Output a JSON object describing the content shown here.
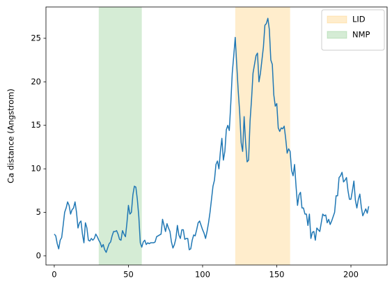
{
  "chart_data": {
    "type": "line",
    "ylabel": "Ca distance (Angstrom)",
    "color": "#1f77b4",
    "x": [
      0,
      1,
      2,
      3,
      4,
      5,
      6,
      7,
      8,
      9,
      10,
      11,
      12,
      13,
      14,
      15,
      16,
      17,
      18,
      19,
      20,
      21,
      22,
      23,
      24,
      25,
      26,
      27,
      28,
      29,
      30,
      31,
      32,
      33,
      34,
      35,
      36,
      37,
      38,
      39,
      40,
      41,
      42,
      43,
      44,
      45,
      46,
      47,
      48,
      49,
      50,
      51,
      52,
      53,
      54,
      55,
      56,
      57,
      58,
      59,
      60,
      61,
      62,
      63,
      64,
      65,
      66,
      67,
      68,
      69,
      70,
      71,
      72,
      73,
      74,
      75,
      76,
      77,
      78,
      79,
      80,
      81,
      82,
      83,
      84,
      85,
      86,
      87,
      88,
      89,
      90,
      91,
      92,
      93,
      94,
      95,
      96,
      97,
      98,
      99,
      100,
      101,
      102,
      103,
      104,
      105,
      106,
      107,
      108,
      109,
      110,
      111,
      112,
      113,
      114,
      115,
      116,
      117,
      118,
      119,
      120,
      121,
      122,
      123,
      124,
      125,
      126,
      127,
      128,
      129,
      130,
      131,
      132,
      133,
      134,
      135,
      136,
      137,
      138,
      139,
      140,
      141,
      142,
      143,
      144,
      145,
      146,
      147,
      148,
      149,
      150,
      151,
      152,
      153,
      154,
      155,
      156,
      157,
      158,
      159,
      160,
      161,
      162,
      163,
      164,
      165,
      166,
      167,
      168,
      169,
      170,
      171,
      172,
      173,
      174,
      175,
      176,
      177,
      178,
      179,
      180,
      181,
      182,
      183,
      184,
      185,
      186,
      187,
      188,
      189,
      190,
      191,
      192,
      193,
      194,
      195,
      196,
      197,
      198,
      199,
      200,
      201,
      202,
      203,
      204,
      205,
      206,
      207,
      208,
      209,
      210,
      211,
      212
    ],
    "values": [
      2.5,
      2.3,
      1.4,
      0.8,
      1.8,
      2.1,
      3.5,
      5.0,
      5.5,
      6.2,
      5.8,
      4.8,
      5.3,
      5.5,
      6.2,
      5.0,
      3.2,
      3.8,
      4.0,
      2.5,
      1.5,
      3.8,
      3.2,
      1.8,
      1.7,
      2.0,
      1.8,
      2.0,
      2.5,
      2.2,
      1.8,
      1.5,
      1.0,
      1.3,
      0.7,
      0.4,
      0.9,
      1.4,
      1.6,
      2.3,
      2.8,
      2.8,
      2.9,
      2.5,
      1.9,
      1.8,
      2.9,
      2.5,
      2.2,
      3.8,
      5.8,
      4.8,
      5.0,
      7.0,
      8.0,
      7.9,
      6.5,
      4.5,
      1.5,
      1.0,
      1.6,
      1.8,
      1.3,
      1.5,
      1.4,
      1.5,
      1.5,
      1.5,
      1.6,
      2.2,
      2.3,
      2.4,
      2.5,
      4.2,
      3.5,
      2.8,
      3.7,
      3.2,
      2.8,
      1.6,
      0.9,
      1.3,
      2.0,
      3.5,
      2.4,
      2.0,
      3.0,
      3.0,
      1.9,
      2.0,
      2.0,
      0.7,
      0.8,
      1.8,
      2.4,
      2.3,
      3.0,
      3.8,
      4.0,
      3.5,
      3.0,
      2.6,
      2.0,
      2.8,
      3.8,
      5.0,
      6.5,
      8.0,
      8.7,
      10.5,
      10.9,
      10.0,
      12.0,
      13.5,
      11.0,
      12.0,
      14.5,
      15.0,
      14.4,
      17.5,
      21.0,
      23.0,
      25.1,
      22.0,
      19.0,
      16.5,
      13.0,
      12.0,
      16.0,
      13.0,
      10.8,
      11.0,
      15.5,
      18.0,
      21.0,
      22.0,
      23.0,
      23.3,
      20.0,
      21.0,
      22.5,
      24.0,
      26.5,
      26.7,
      27.3,
      26.0,
      22.5,
      22.0,
      18.5,
      17.2,
      17.5,
      14.7,
      14.3,
      14.7,
      14.6,
      14.9,
      13.5,
      11.8,
      12.3,
      12.0,
      9.8,
      9.2,
      10.5,
      8.0,
      5.8,
      7.0,
      7.3,
      5.5,
      5.5,
      4.8,
      4.8,
      3.5,
      4.8,
      2.0,
      2.7,
      2.8,
      1.8,
      3.2,
      3.0,
      2.8,
      3.8,
      4.8,
      4.6,
      4.7,
      3.8,
      4.2,
      3.6,
      4.0,
      4.5,
      5.0,
      6.9,
      6.9,
      9.0,
      9.2,
      9.6,
      8.5,
      8.7,
      9.0,
      7.5,
      6.5,
      6.5,
      7.5,
      8.6,
      6.4,
      5.5,
      6.5,
      7.1,
      5.6,
      4.6,
      5.0,
      5.4,
      4.9,
      5.7
    ],
    "spans": [
      {
        "name": "LID",
        "color": "#ffa500",
        "range": [
          122,
          159
        ]
      },
      {
        "name": "NMP",
        "color": "#2ca02c",
        "range": [
          30,
          59
        ]
      }
    ],
    "span_alpha": 0.2,
    "xlim": [
      -5.6,
      224.4
    ],
    "ylim": [
      -1.05,
      28.6
    ],
    "xticks": [
      0,
      50,
      100,
      150,
      200
    ],
    "yticks": [
      0,
      5,
      10,
      15,
      20,
      25
    ],
    "legend": "upper right"
  }
}
